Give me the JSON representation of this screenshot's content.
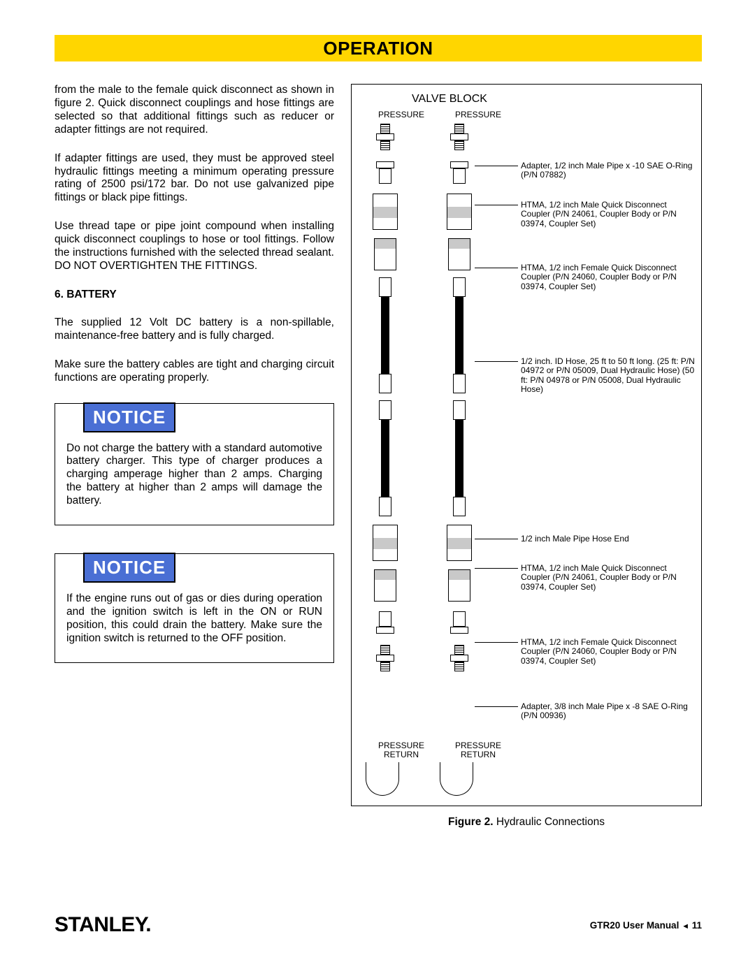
{
  "header": {
    "title": "OPERATION"
  },
  "left": {
    "p1": "from the male to the female quick disconnect as shown in figure 2.  Quick disconnect couplings and hose fittings are selected so that additional fittings such as reducer or adapter fittings are not required.",
    "p2": "If adapter fittings are used, they must be approved steel hydraulic fittings meeting a minimum operating pressure rating of 2500 psi/172 bar.  Do not use galvanized pipe fittings or black pipe fittings.",
    "p3": "Use thread tape or pipe joint compound when installing quick disconnect couplings to hose or tool fittings.  Follow the instructions furnished with the selected thread sealant.  DO NOT OVERTIGHTEN THE FITTINGS.",
    "battery_head": "6.  BATTERY",
    "p4": "The supplied 12 Volt DC battery is a non-spillable, maintenance-free battery and is fully charged.",
    "p5": "Make sure the battery cables are tight and charging circuit functions are operating properly.",
    "notice_label": "NOTICE",
    "notice1": "Do not charge the battery with a standard automotive battery charger. This type of charger produces a charging amperage higher than 2 amps. Charging the battery at higher than 2 amps will damage the battery.",
    "notice2": "If the engine runs out of gas or dies during operation and the ignition switch is left in the ON or RUN position, this could drain the battery. Make sure the ignition switch is returned to the OFF position."
  },
  "diagram": {
    "valve_block": "VALVE BLOCK",
    "pressure": "PRESSURE",
    "return": "RETURN",
    "pressure_return": "PRESSURE\nRETURN",
    "annot": [
      "Adapter, 1/2 inch Male Pipe x -10 SAE O-Ring (P/N 07882)",
      "HTMA, 1/2 inch Male Quick Disconnect Coupler (P/N 24061, Coupler Body or P/N 03974, Coupler Set)",
      "HTMA, 1/2 inch Female Quick Disconnect Coupler (P/N 24060, Coupler Body or P/N 03974, Coupler Set)",
      "1/2 inch. ID Hose, 25 ft to 50 ft long.\n(25 ft: P/N 04972 or P/N 05009, Dual Hydraulic Hose)\n(50 ft: P/N 04978 or P/N 05008, Dual Hydraulic Hose)",
      "1/2 inch Male Pipe Hose End",
      "HTMA, 1/2 inch Male Quick Disconnect Coupler (P/N 24061, Coupler Body or P/N 03974, Coupler Set)",
      "HTMA, 1/2 inch Female Quick Disconnect Coupler (P/N 24060, Coupler Body or P/N 03974, Coupler Set)",
      "Adapter, 3/8 inch Male Pipe x -8 SAE O-Ring (P/N 00936)"
    ],
    "annot_tops": [
      60,
      116,
      206,
      340,
      594,
      636,
      742,
      834
    ],
    "caption_label": "Figure 2.",
    "caption_text": "  Hydraulic Connections"
  },
  "footer": {
    "logo": "STANLEY",
    "manual": "GTR20 User Manual ",
    "tri": "◄",
    "page": " 11"
  },
  "colors": {
    "yellow": "#ffd600",
    "notice_blue": "#4a6fd4"
  }
}
